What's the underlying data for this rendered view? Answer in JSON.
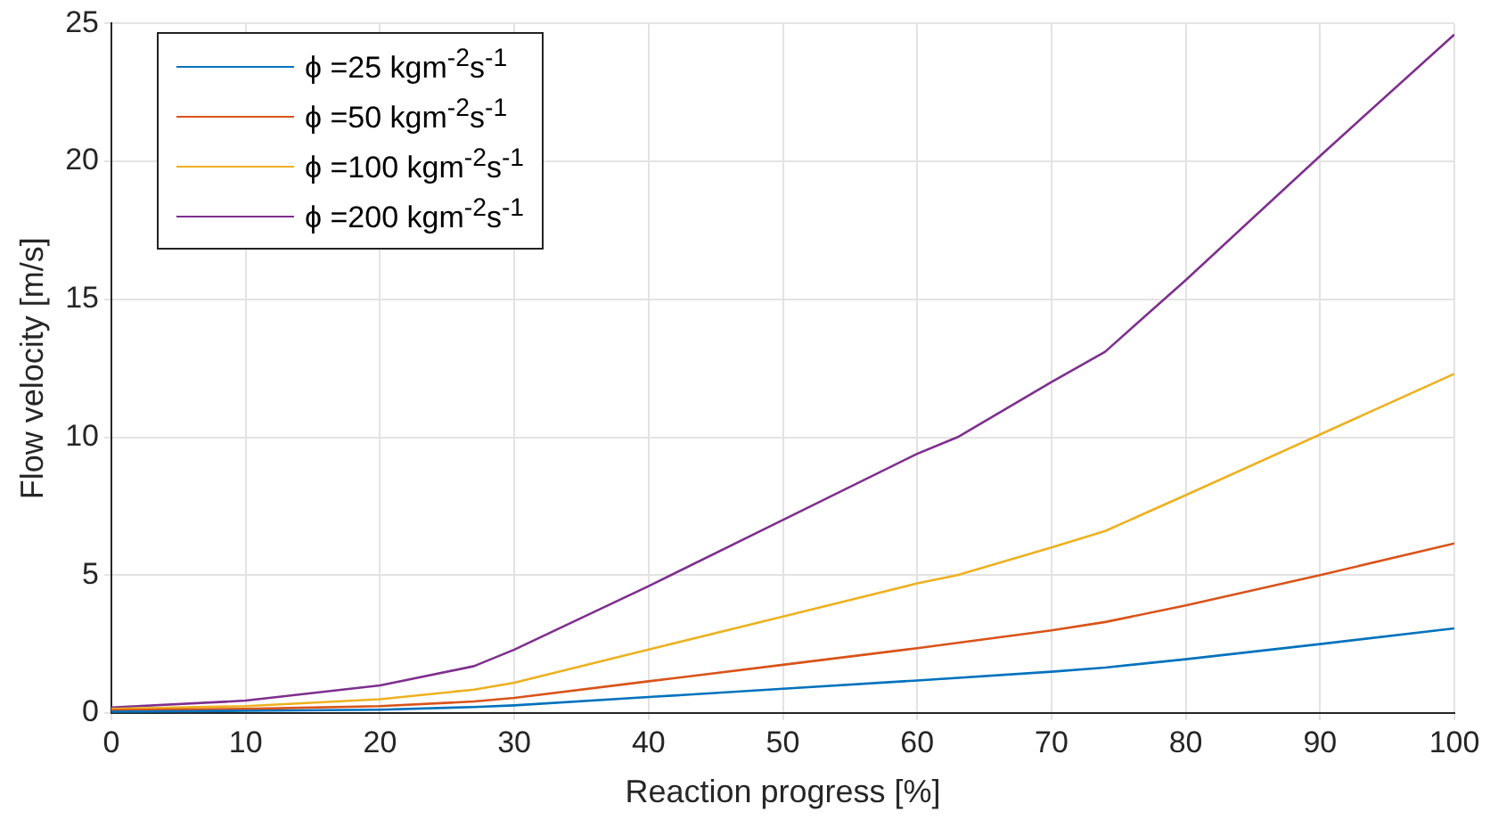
{
  "chart_data": {
    "type": "line",
    "xlabel": "Reaction progress [%]",
    "ylabel": "Flow velocity [m/s]",
    "xlim": [
      0,
      100
    ],
    "ylim": [
      0,
      25
    ],
    "xticks": [
      0,
      10,
      20,
      30,
      40,
      50,
      60,
      70,
      80,
      90,
      100
    ],
    "yticks": [
      0,
      5,
      10,
      15,
      20,
      25
    ],
    "grid": true,
    "legend": "top left",
    "marker": "none",
    "line_style": "solid",
    "series": [
      {
        "name": "ϕ =25 kgm$^{-2}$s$^{-1}$",
        "color": "#0072bd",
        "x": [
          0,
          10,
          20,
          27,
          30,
          40,
          50,
          60,
          70,
          74,
          80,
          90,
          100
        ],
        "values": [
          0.05,
          0.08,
          0.12,
          0.22,
          0.28,
          0.58,
          0.88,
          1.18,
          1.5,
          1.65,
          1.95,
          2.5,
          3.07
        ]
      },
      {
        "name": "ϕ =50 kgm$^{-2}$s$^{-1}$",
        "color": "#d95319",
        "x": [
          0,
          10,
          20,
          27,
          30,
          40,
          50,
          60,
          70,
          74,
          80,
          90,
          100
        ],
        "values": [
          0.1,
          0.15,
          0.25,
          0.42,
          0.55,
          1.15,
          1.75,
          2.35,
          3.0,
          3.3,
          3.9,
          5.0,
          6.15
        ]
      },
      {
        "name": "ϕ =100 kgm$^{-2}$s$^{-1}$",
        "color": "#edb120",
        "x": [
          0,
          10,
          20,
          27,
          30,
          40,
          50,
          60,
          63,
          70,
          74,
          80,
          90,
          100
        ],
        "values": [
          0.15,
          0.25,
          0.5,
          0.85,
          1.1,
          2.3,
          3.5,
          4.7,
          5.0,
          6.0,
          6.6,
          7.9,
          10.1,
          12.3
        ]
      },
      {
        "name": "ϕ =200 kgm$^{-2}$s$^{-1}$",
        "color": "#7e2f8e",
        "x": [
          0,
          10,
          20,
          27,
          30,
          40,
          50,
          60,
          63,
          70,
          74,
          80,
          90,
          100
        ],
        "values": [
          0.2,
          0.45,
          1.0,
          1.7,
          2.3,
          4.6,
          7.0,
          9.4,
          10.0,
          12.0,
          13.1,
          15.7,
          20.2,
          24.6
        ]
      }
    ]
  }
}
